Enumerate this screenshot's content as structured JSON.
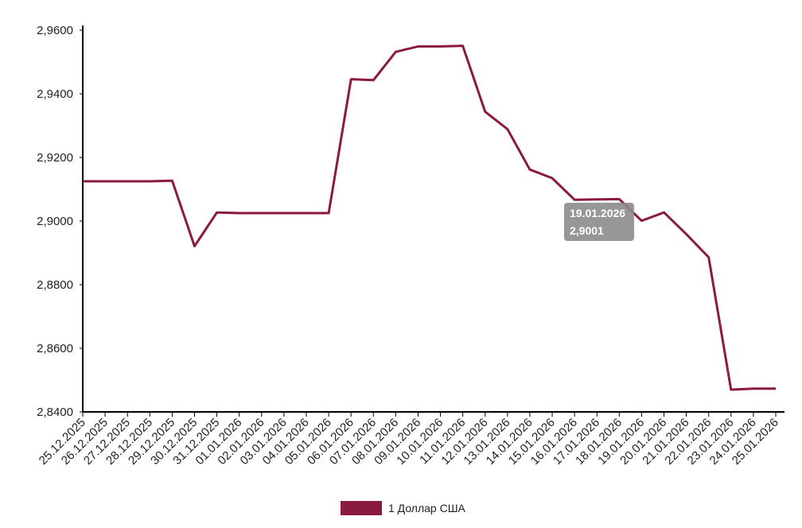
{
  "chart_data": {
    "type": "line",
    "categories": [
      "25.12.2025",
      "26.12.2025",
      "27.12.2025",
      "28.12.2025",
      "29.12.2025",
      "30.12.2025",
      "31.12.2025",
      "01.01.2026",
      "02.01.2026",
      "03.01.2026",
      "04.01.2026",
      "05.01.2026",
      "06.01.2026",
      "07.01.2026",
      "08.01.2026",
      "09.01.2026",
      "10.01.2026",
      "11.01.2026",
      "12.01.2026",
      "13.01.2026",
      "14.01.2026",
      "15.01.2026",
      "16.01.2026",
      "17.01.2026",
      "18.01.2026",
      "19.01.2026",
      "20.01.2026",
      "21.01.2026",
      "22.01.2026",
      "23.01.2026",
      "24.01.2026",
      "25.01.2026"
    ],
    "series": [
      {
        "name": "1 Доллар США",
        "values": [
          2.9125,
          2.9125,
          2.9125,
          2.9125,
          2.9127,
          2.8921,
          2.9027,
          2.9025,
          2.9025,
          2.9025,
          2.9025,
          2.9025,
          2.9446,
          2.9443,
          2.9532,
          2.9549,
          2.9549,
          2.9551,
          2.9344,
          2.9289,
          2.9162,
          2.9135,
          2.9067,
          2.9068,
          2.9069,
          2.9001,
          2.9027,
          2.8959,
          2.8886,
          2.847,
          2.8473,
          2.8473
        ]
      }
    ],
    "yticks": [
      "2,8400",
      "2,8600",
      "2,8800",
      "2,9000",
      "2,9200",
      "2,9400",
      "2,9600"
    ],
    "ylim": [
      2.84,
      2.96
    ],
    "tooltip": {
      "date": "19.01.2026",
      "value": "2,9001"
    },
    "colors": {
      "line": "#8b1a3f",
      "tooltip_bg": "#8c8c8c"
    },
    "legend": {
      "label": "1 Доллар США",
      "position": "bottom-center"
    }
  }
}
